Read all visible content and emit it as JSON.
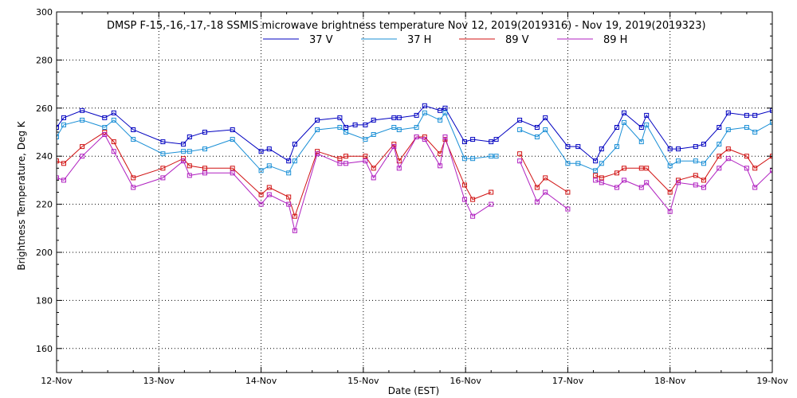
{
  "chart_data": {
    "type": "line",
    "title": "DMSP F-15,-16,-17,-18 SSMIS microwave brightness temperature Nov 12, 2019(2019316) - Nov 19, 2019(2019323)",
    "xlabel": "Date (EST)",
    "ylabel": "Brightness Temperature, Deg K",
    "xlim": [
      0,
      7
    ],
    "ylim": [
      150,
      300
    ],
    "yticks": [
      150,
      160,
      180,
      200,
      220,
      240,
      260,
      280,
      300
    ],
    "ytick_labels": [
      "",
      "160",
      "180",
      "200",
      "220",
      "240",
      "260",
      "280",
      "300"
    ],
    "xticks": [
      0,
      1,
      2,
      3,
      4,
      5,
      6,
      7
    ],
    "xtick_labels": [
      "12-Nov",
      "13-Nov",
      "14-Nov",
      "15-Nov",
      "16-Nov",
      "17-Nov",
      "18-Nov",
      "19-Nov"
    ],
    "grid": true,
    "legend_position": "top-center",
    "series": [
      {
        "name": "37 V",
        "color": "#0000c0",
        "segments": [
          [
            [
              0.0,
              252
            ],
            [
              0.07,
              256
            ],
            [
              0.25,
              259
            ],
            [
              0.47,
              256
            ],
            [
              0.56,
              258
            ],
            [
              0.75,
              251
            ],
            [
              1.04,
              246
            ],
            [
              1.24,
              245
            ],
            [
              1.3,
              248
            ],
            [
              1.45,
              250
            ],
            [
              1.72,
              251
            ],
            [
              2.0,
              242
            ],
            [
              2.08,
              243
            ],
            [
              2.27,
              238
            ],
            [
              2.33,
              245
            ],
            [
              2.55,
              255
            ],
            [
              2.77,
              256
            ],
            [
              2.83,
              252
            ],
            [
              2.92,
              253
            ],
            [
              3.02,
              253
            ],
            [
              3.1,
              255
            ],
            [
              3.3,
              256
            ],
            [
              3.35,
              256
            ],
            [
              3.52,
              257
            ],
            [
              3.6,
              261
            ],
            [
              3.75,
              259
            ],
            [
              3.8,
              260
            ],
            [
              3.99,
              246
            ],
            [
              4.07,
              247
            ],
            [
              4.25,
              246
            ],
            [
              4.3,
              247
            ],
            [
              4.53,
              255
            ],
            [
              4.7,
              252
            ],
            [
              4.78,
              256
            ],
            [
              5.0,
              244
            ],
            [
              5.1,
              244
            ],
            [
              5.27,
              238
            ],
            [
              5.33,
              243
            ],
            [
              5.48,
              252
            ],
            [
              5.55,
              258
            ],
            [
              5.72,
              252
            ],
            [
              5.77,
              257
            ],
            [
              6.0,
              243
            ],
            [
              6.08,
              243
            ],
            [
              6.25,
              244
            ],
            [
              6.33,
              245
            ],
            [
              6.48,
              252
            ],
            [
              6.57,
              258
            ],
            [
              6.75,
              257
            ],
            [
              6.83,
              257
            ],
            [
              7.0,
              259
            ]
          ]
        ]
      },
      {
        "name": "37 H",
        "color": "#1a8fd6",
        "segments": [
          [
            [
              0.0,
              248
            ],
            [
              0.07,
              253
            ],
            [
              0.25,
              255
            ],
            [
              0.47,
              252
            ],
            [
              0.56,
              255
            ],
            [
              0.75,
              247
            ],
            [
              1.04,
              241
            ],
            [
              1.24,
              242
            ],
            [
              1.3,
              242
            ],
            [
              1.45,
              243
            ],
            [
              1.72,
              247
            ],
            [
              2.0,
              234
            ],
            [
              2.08,
              236
            ],
            [
              2.27,
              233
            ],
            [
              2.33,
              238
            ],
            [
              2.55,
              251
            ],
            [
              2.77,
              252
            ],
            [
              2.83,
              250
            ],
            [
              3.02,
              247
            ],
            [
              3.1,
              249
            ],
            [
              3.3,
              252
            ],
            [
              3.35,
              251
            ],
            [
              3.52,
              252
            ],
            [
              3.6,
              258
            ],
            [
              3.75,
              255
            ],
            [
              3.8,
              258
            ],
            [
              3.99,
              239
            ],
            [
              4.07,
              239
            ],
            [
              4.25,
              240
            ],
            [
              4.3,
              240
            ]
          ],
          [
            [
              4.53,
              251
            ],
            [
              4.7,
              248
            ],
            [
              4.78,
              251
            ],
            [
              5.0,
              237
            ],
            [
              5.1,
              237
            ],
            [
              5.27,
              234
            ],
            [
              5.33,
              237
            ],
            [
              5.48,
              244
            ],
            [
              5.55,
              254
            ],
            [
              5.72,
              246
            ],
            [
              5.77,
              253
            ],
            [
              6.0,
              236
            ],
            [
              6.08,
              238
            ],
            [
              6.25,
              238
            ],
            [
              6.33,
              237
            ],
            [
              6.48,
              245
            ],
            [
              6.57,
              251
            ],
            [
              6.75,
              252
            ],
            [
              6.83,
              250
            ],
            [
              7.0,
              254
            ]
          ]
        ]
      },
      {
        "name": "89 V",
        "color": "#d01010",
        "segments": [
          [
            [
              0.0,
              238
            ],
            [
              0.07,
              237
            ],
            [
              0.25,
              244
            ],
            [
              0.47,
              250
            ],
            [
              0.56,
              246
            ],
            [
              0.75,
              231
            ],
            [
              1.04,
              235
            ],
            [
              1.24,
              239
            ],
            [
              1.3,
              236
            ],
            [
              1.45,
              235
            ],
            [
              1.72,
              235
            ],
            [
              2.0,
              224
            ],
            [
              2.08,
              227
            ],
            [
              2.27,
              223
            ],
            [
              2.33,
              215
            ],
            [
              2.55,
              242
            ],
            [
              2.77,
              239
            ],
            [
              2.83,
              240
            ],
            [
              3.02,
              240
            ],
            [
              3.1,
              235
            ],
            [
              3.3,
              245
            ],
            [
              3.35,
              238
            ],
            [
              3.52,
              248
            ],
            [
              3.6,
              248
            ],
            [
              3.75,
              241
            ],
            [
              3.8,
              247
            ],
            [
              3.99,
              228
            ],
            [
              4.07,
              222
            ],
            [
              4.25,
              225
            ]
          ],
          [
            [
              4.53,
              241
            ],
            [
              4.7,
              227
            ],
            [
              4.78,
              231
            ],
            [
              5.0,
              225
            ]
          ],
          [
            [
              5.27,
              232
            ],
            [
              5.33,
              231
            ],
            [
              5.48,
              233
            ],
            [
              5.55,
              235
            ],
            [
              5.72,
              235
            ],
            [
              5.77,
              235
            ],
            [
              6.0,
              225
            ],
            [
              6.08,
              230
            ],
            [
              6.25,
              232
            ],
            [
              6.33,
              230
            ],
            [
              6.48,
              240
            ],
            [
              6.57,
              243
            ],
            [
              6.75,
              240
            ],
            [
              6.83,
              235
            ],
            [
              7.0,
              240
            ]
          ]
        ]
      },
      {
        "name": "89 H",
        "color": "#b020c0",
        "segments": [
          [
            [
              0.0,
              231
            ],
            [
              0.07,
              230
            ],
            [
              0.25,
              240
            ],
            [
              0.47,
              249
            ],
            [
              0.56,
              242
            ],
            [
              0.75,
              227
            ],
            [
              1.04,
              231
            ],
            [
              1.24,
              238
            ],
            [
              1.3,
              232
            ],
            [
              1.45,
              233
            ],
            [
              1.72,
              233
            ],
            [
              2.0,
              220
            ],
            [
              2.08,
              224
            ],
            [
              2.27,
              220
            ],
            [
              2.33,
              209
            ],
            [
              2.55,
              241
            ],
            [
              2.77,
              237
            ],
            [
              2.83,
              237
            ],
            [
              3.02,
              238
            ],
            [
              3.1,
              231
            ],
            [
              3.3,
              244
            ],
            [
              3.35,
              235
            ],
            [
              3.52,
              248
            ],
            [
              3.6,
              247
            ],
            [
              3.75,
              236
            ],
            [
              3.8,
              248
            ],
            [
              3.99,
              222
            ],
            [
              4.07,
              215
            ],
            [
              4.25,
              220
            ]
          ],
          [
            [
              4.53,
              238
            ],
            [
              4.7,
              221
            ],
            [
              4.78,
              225
            ],
            [
              5.0,
              218
            ]
          ],
          [
            [
              5.27,
              230
            ],
            [
              5.33,
              229
            ],
            [
              5.48,
              227
            ],
            [
              5.55,
              230
            ],
            [
              5.72,
              227
            ],
            [
              5.77,
              229
            ],
            [
              6.0,
              217
            ],
            [
              6.08,
              229
            ],
            [
              6.25,
              228
            ],
            [
              6.33,
              227
            ],
            [
              6.48,
              235
            ],
            [
              6.57,
              239
            ],
            [
              6.75,
              235
            ],
            [
              6.83,
              227
            ],
            [
              7.0,
              234
            ]
          ]
        ]
      }
    ]
  }
}
